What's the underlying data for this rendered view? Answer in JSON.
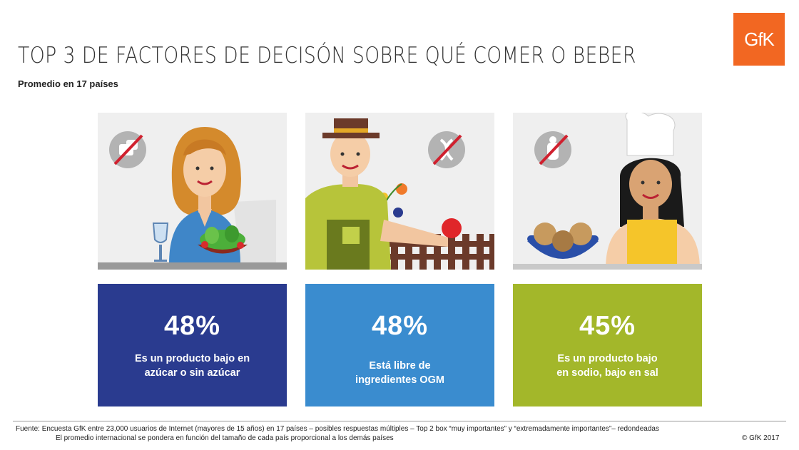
{
  "logo": {
    "text": "GfK",
    "color": "#f26722"
  },
  "header": {
    "title": "TOP 3 DE FACTORES DE DECISÓN SOBRE QUÉ COMER O BEBER",
    "subtitle": "Promedio en 17 países"
  },
  "chart_data": {
    "type": "table",
    "title": "TOP 3 DE FACTORES DE DECISÓN SOBRE QUÉ COMER O BEBER",
    "subtitle": "Promedio en 17 países",
    "categories": [
      "Es un producto bajo en azúcar o sin azúcar",
      "Está libre de ingredientes OGM",
      "Es un producto bajo en sodio, bajo en sal"
    ],
    "values": [
      48,
      48,
      45
    ],
    "unit": "%",
    "cards": [
      {
        "value": "48%",
        "line1": "Es un producto bajo en",
        "line2": "azúcar o sin azúcar",
        "color": "#2a3b8f",
        "icon": "no-sugar-icon"
      },
      {
        "value": "48%",
        "line1": "Está libre de",
        "line2": "ingredientes OGM",
        "color": "#3a8ccf",
        "icon": "no-gmo-icon"
      },
      {
        "value": "45%",
        "line1": "Es un producto bajo",
        "line2": "en sodio, bajo en sal",
        "color": "#a3b72a",
        "icon": "no-salt-icon"
      }
    ]
  },
  "footer": {
    "source": "Fuente: Encuesta GfK entre 23,000 usuarios de Internet (mayores de 15 años) en 17 países – posibles respuestas múltiples – Top 2 box “muy importantes” y “extremadamente importantes”– redondeadas",
    "note": "El promedio internacional se pondera en función del tamaño de cada país proporcional a los demás países",
    "copyright": "© GfK 2017"
  }
}
